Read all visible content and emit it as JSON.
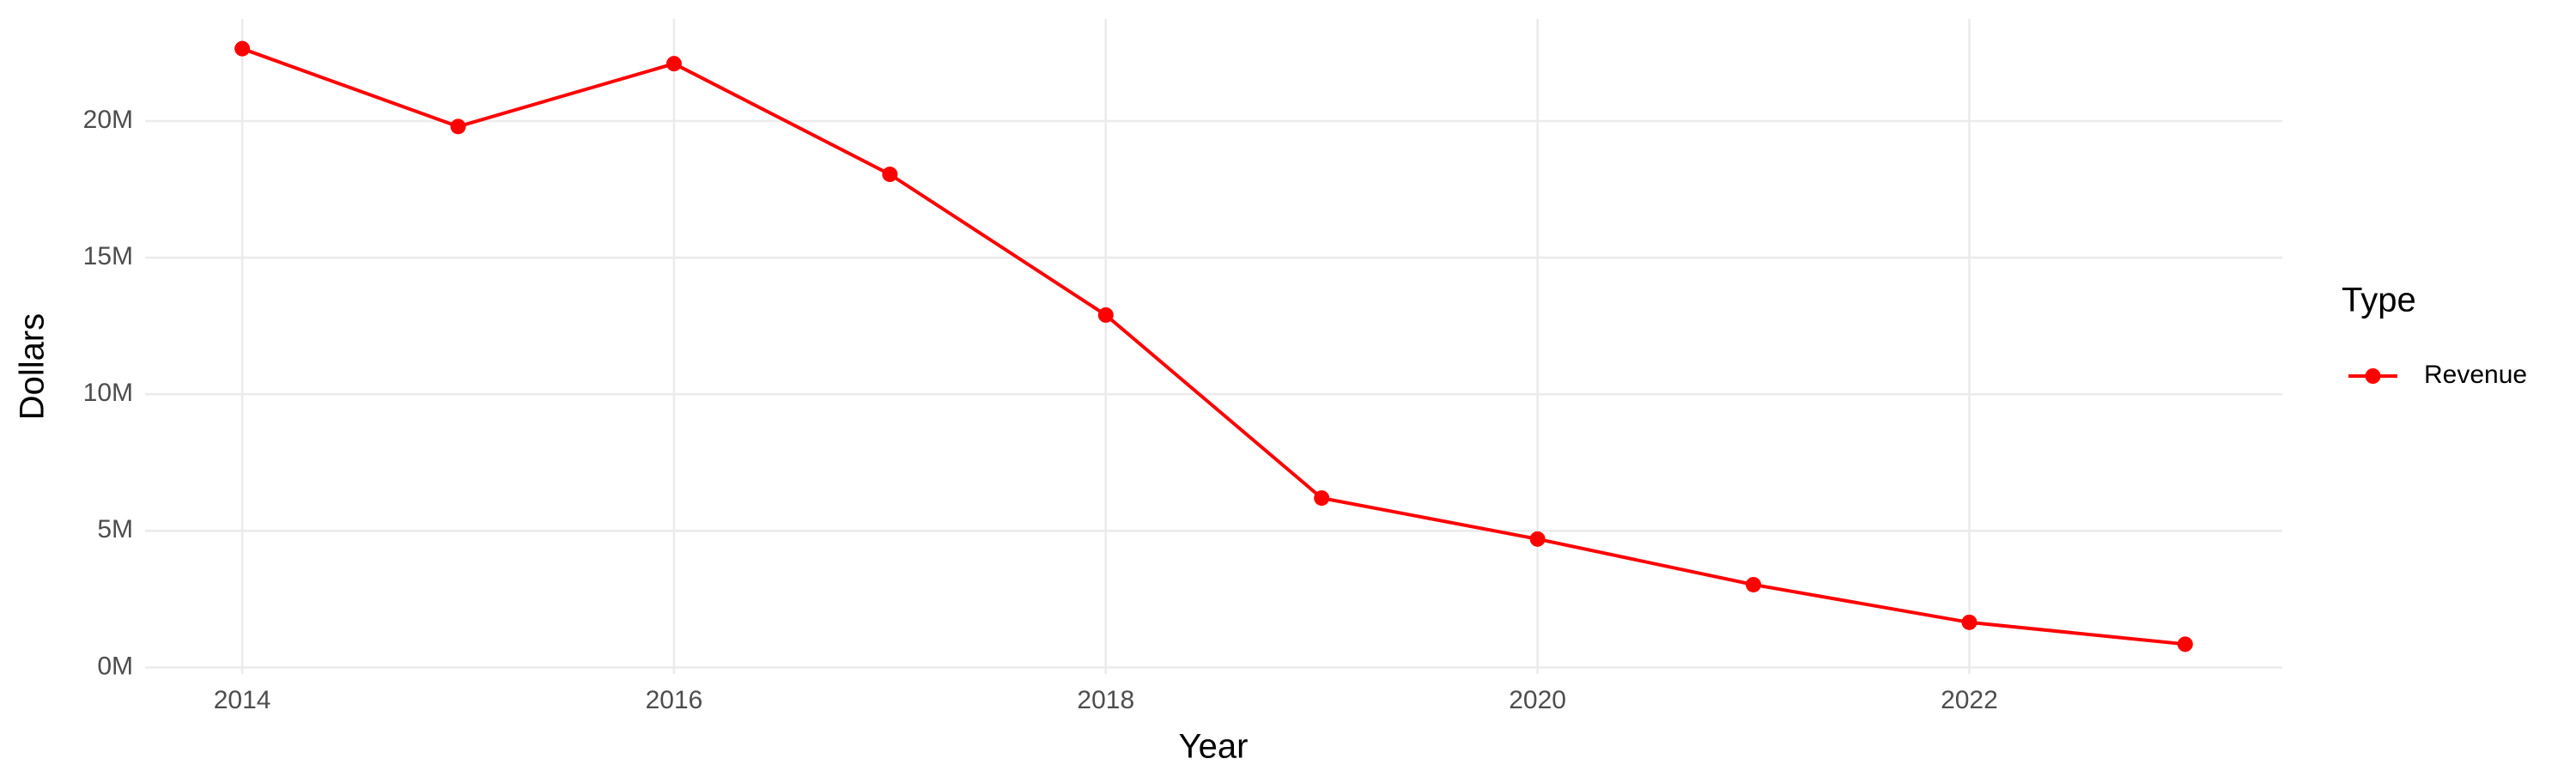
{
  "chart_data": {
    "type": "line",
    "x_label": "Year",
    "y_label": "Dollars",
    "legend_title": "Type",
    "x": [
      2014,
      2015,
      2016,
      2017,
      2018,
      2019,
      2020,
      2021,
      2022,
      2023
    ],
    "series": [
      {
        "name": "Revenue",
        "color": "#ff0000",
        "values": [
          22650000,
          19800000,
          22100000,
          18050000,
          12900000,
          6200000,
          4700000,
          3030000,
          1650000,
          850000
        ]
      }
    ],
    "xlim": [
      2013.55,
      2023.45
    ],
    "xticks": [
      2014,
      2016,
      2018,
      2020,
      2022
    ],
    "ylim": [
      -240000,
      23740000
    ],
    "yticks": [
      {
        "value": 0,
        "label": "0M"
      },
      {
        "value": 5000000,
        "label": "5M"
      },
      {
        "value": 10000000,
        "label": "10M"
      },
      {
        "value": 15000000,
        "label": "15M"
      },
      {
        "value": 20000000,
        "label": "20M"
      }
    ],
    "grid": true,
    "legend": "right"
  }
}
